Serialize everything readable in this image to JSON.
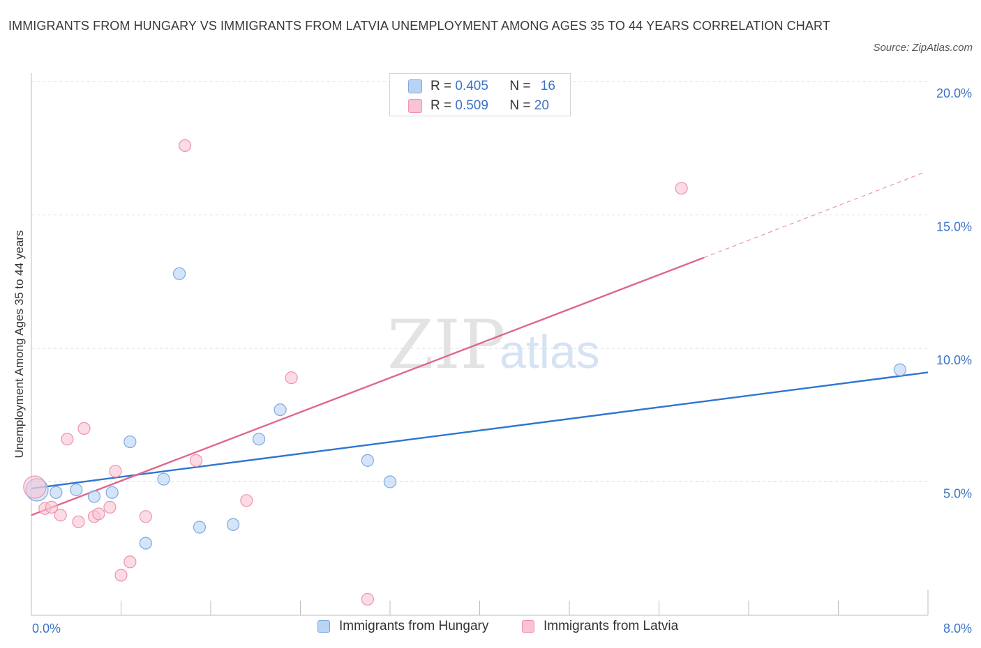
{
  "header": {
    "title": "IMMIGRANTS FROM HUNGARY VS IMMIGRANTS FROM LATVIA UNEMPLOYMENT AMONG AGES 35 TO 44 YEARS CORRELATION CHART",
    "source": "Source: ZipAtlas.com"
  },
  "watermark": {
    "zip": "ZIP",
    "atlas": "atlas"
  },
  "colors": {
    "hungary_fill": "#b9d3f5",
    "hungary_stroke": "#7ea9e0",
    "hungary_line": "#2f75d0",
    "latvia_fill": "#f8c3d2",
    "latvia_stroke": "#ee93ad",
    "latvia_line": "#e0668f",
    "value_blue": "#3b73c6",
    "grid": "#d9d9d9"
  },
  "legend_top": {
    "rows": [
      {
        "r_label": "R = ",
        "r_value": "0.405",
        "n_label": "N = ",
        "n_value": "16"
      },
      {
        "r_label": "R = ",
        "r_value": "0.509",
        "n_label": "N = ",
        "n_value": "20"
      }
    ]
  },
  "legend_bottom": {
    "items": [
      "Immigrants from Hungary",
      "Immigrants from Latvia"
    ]
  },
  "chart_data": {
    "type": "scatter",
    "title": "IMMIGRANTS FROM HUNGARY VS IMMIGRANTS FROM LATVIA UNEMPLOYMENT AMONG AGES 35 TO 44 YEARS CORRELATION CHART",
    "xlabel": "",
    "ylabel": "Unemployment Among Ages 35 to 44 years",
    "xlim": [
      0,
      8
    ],
    "ylim": [
      0,
      20
    ],
    "x_tick_labels": [
      "0.0%",
      "8.0%"
    ],
    "y_ticks": [
      5,
      10,
      15,
      20
    ],
    "y_tick_labels": [
      "5.0%",
      "10.0%",
      "15.0%",
      "20.0%"
    ],
    "grid": true,
    "legend_position": "top-center",
    "series": [
      {
        "name": "Immigrants from Hungary",
        "r": 0.405,
        "n": 16,
        "points": [
          {
            "x": 0.05,
            "y": 4.7,
            "big": true
          },
          {
            "x": 0.22,
            "y": 4.6
          },
          {
            "x": 0.4,
            "y": 4.7
          },
          {
            "x": 0.56,
            "y": 4.45
          },
          {
            "x": 0.72,
            "y": 4.6
          },
          {
            "x": 0.88,
            "y": 6.5
          },
          {
            "x": 1.02,
            "y": 2.7
          },
          {
            "x": 1.18,
            "y": 5.1
          },
          {
            "x": 1.32,
            "y": 12.8
          },
          {
            "x": 1.5,
            "y": 3.3
          },
          {
            "x": 1.8,
            "y": 3.4
          },
          {
            "x": 2.03,
            "y": 6.6
          },
          {
            "x": 2.22,
            "y": 7.7
          },
          {
            "x": 3.0,
            "y": 5.8
          },
          {
            "x": 3.2,
            "y": 5.0
          },
          {
            "x": 7.75,
            "y": 9.2
          }
        ],
        "trend": {
          "x0": 0.0,
          "y0": 4.75,
          "x1": 8.0,
          "y1": 9.1
        }
      },
      {
        "name": "Immigrants from Latvia",
        "r": 0.509,
        "n": 20,
        "points": [
          {
            "x": 0.03,
            "y": 4.8,
            "big": true
          },
          {
            "x": 0.12,
            "y": 4.0
          },
          {
            "x": 0.18,
            "y": 4.05
          },
          {
            "x": 0.26,
            "y": 3.75
          },
          {
            "x": 0.32,
            "y": 6.6
          },
          {
            "x": 0.42,
            "y": 3.5
          },
          {
            "x": 0.47,
            "y": 7.0
          },
          {
            "x": 0.56,
            "y": 3.7
          },
          {
            "x": 0.6,
            "y": 3.8
          },
          {
            "x": 0.7,
            "y": 4.05
          },
          {
            "x": 0.75,
            "y": 5.4
          },
          {
            "x": 0.8,
            "y": 1.5
          },
          {
            "x": 0.88,
            "y": 2.0
          },
          {
            "x": 1.02,
            "y": 3.7
          },
          {
            "x": 1.37,
            "y": 17.6
          },
          {
            "x": 1.47,
            "y": 5.8
          },
          {
            "x": 1.92,
            "y": 4.3
          },
          {
            "x": 2.32,
            "y": 8.9
          },
          {
            "x": 3.0,
            "y": 0.6
          },
          {
            "x": 5.8,
            "y": 16.0
          }
        ],
        "trend": {
          "x0": 0.0,
          "y0": 3.75,
          "x1": 6.0,
          "y1": 13.4
        },
        "trend_extension": {
          "x0": 6.0,
          "y0": 13.4,
          "x1": 7.97,
          "y1": 16.6
        }
      }
    ]
  }
}
